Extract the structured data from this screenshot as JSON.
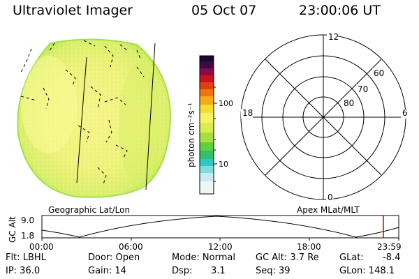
{
  "header": {
    "title": "Ultraviolet Imager",
    "date": "05 Oct 07",
    "time": "23:00:06 UT"
  },
  "colorbar": {
    "unit_label": "photon cm⁻²s⁻¹",
    "tick_100": "100",
    "tick_10": "10"
  },
  "polar": {
    "label_12": "12",
    "label_6": "6",
    "label_18": "18",
    "label_0": "0",
    "lat_60": "60",
    "lat_70": "70",
    "lat_80": "80"
  },
  "captions": {
    "geographic": "Geographic Lat/Lon",
    "apex": "Apex MLat/MLT"
  },
  "timeline": {
    "ylabel": "GC Alt",
    "y_max": "9.0",
    "y_min": "1.8",
    "x_ticks": [
      "00:00",
      "06:00",
      "12:00",
      "18:00",
      "23:59"
    ],
    "marker_color": "#cc0000"
  },
  "footer": {
    "flt": "Flt: LBHL",
    "ip": "IP: 36.0",
    "door": "Door: Open",
    "gain": "Gain: 14",
    "mode": "Mode: Normal",
    "dsp_label": "Dsp:",
    "dsp_value": "3.1",
    "gc_alt": "GC Alt: 3.7 Re",
    "seq": "Seq: 39",
    "glat_label": "GLat:",
    "glat_value": "-8.4",
    "glon": "GLon: 148.1"
  }
}
